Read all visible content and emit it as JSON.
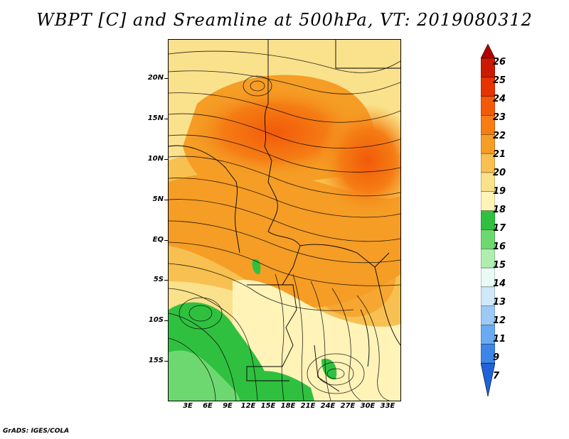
{
  "title": "WBPT [C] and Sreamline at 500hPa, VT: 2019080312",
  "credit": "GrADS: IGES/COLA",
  "latitude_labels": [
    "20N",
    "15N",
    "10N",
    "5N",
    "EQ",
    "5S",
    "10S",
    "15S"
  ],
  "longitude_labels": [
    "3E",
    "6E",
    "9E",
    "12E",
    "15E",
    "18E",
    "21E",
    "24E",
    "27E",
    "30E",
    "33E"
  ],
  "colorbar": {
    "labels": [
      "26",
      "25",
      "24",
      "23",
      "22",
      "21",
      "20",
      "19",
      "18",
      "17",
      "16",
      "15",
      "14",
      "13",
      "12",
      "11",
      "9",
      "7"
    ],
    "colors": [
      "#b30000",
      "#cc1a00",
      "#e63300",
      "#f25a0a",
      "#f57d14",
      "#f59d25",
      "#f7c050",
      "#fae18c",
      "#fff3b8",
      "#30c040",
      "#6ed870",
      "#b0eeb0",
      "#e8fbf4",
      "#cfe8fa",
      "#9ccaf5",
      "#6aaaf0",
      "#3d85e6",
      "#1e64d8"
    ]
  },
  "map": {
    "region": "Central and East Africa",
    "lat_range": [
      -19,
      24
    ],
    "lon_range": [
      0,
      35
    ]
  }
}
